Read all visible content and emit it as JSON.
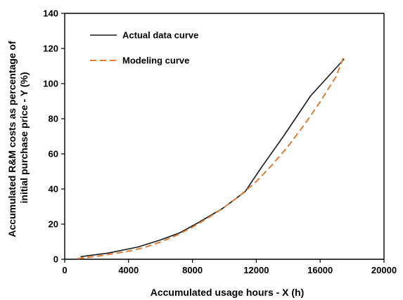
{
  "chart_data": {
    "type": "line",
    "title": "",
    "xlabel": "Accumulated usage hours - X (h)",
    "ylabel_lines": [
      "Accumulated R&M costs as percentage of",
      "initial purchase price - Y (%)"
    ],
    "xlim": [
      0,
      20000
    ],
    "ylim": [
      0,
      140
    ],
    "xticks": [
      0,
      4000,
      8000,
      12000,
      16000,
      20000
    ],
    "yticks": [
      0,
      20,
      40,
      60,
      80,
      100,
      120,
      140
    ],
    "grid": false,
    "legend_position": "top-left",
    "series": [
      {
        "name": "Actual data curve",
        "color": "#1a1a1a",
        "style": "solid",
        "x": [
          1000,
          2700,
          4600,
          6000,
          7200,
          8400,
          9900,
          11300,
          12300,
          13700,
          15400,
          17500
        ],
        "y": [
          1.5,
          3.5,
          7,
          11,
          15,
          21,
          29,
          38.5,
          52,
          70,
          93,
          114
        ]
      },
      {
        "name": "Modeling curve",
        "color": "#e07b39",
        "style": "dashed",
        "x": [
          800,
          2000,
          3000,
          4000,
          5000,
          6000,
          7000,
          8000,
          9000,
          10000,
          11000,
          12000,
          13000,
          14000,
          15000,
          16000,
          17000,
          17500
        ],
        "y": [
          0.4,
          1.7,
          3.1,
          4.6,
          6.7,
          9.8,
          13.6,
          18.3,
          23.7,
          29.6,
          36.5,
          44.3,
          53.8,
          64.4,
          76.5,
          89.6,
          104.1,
          116
        ]
      }
    ]
  }
}
